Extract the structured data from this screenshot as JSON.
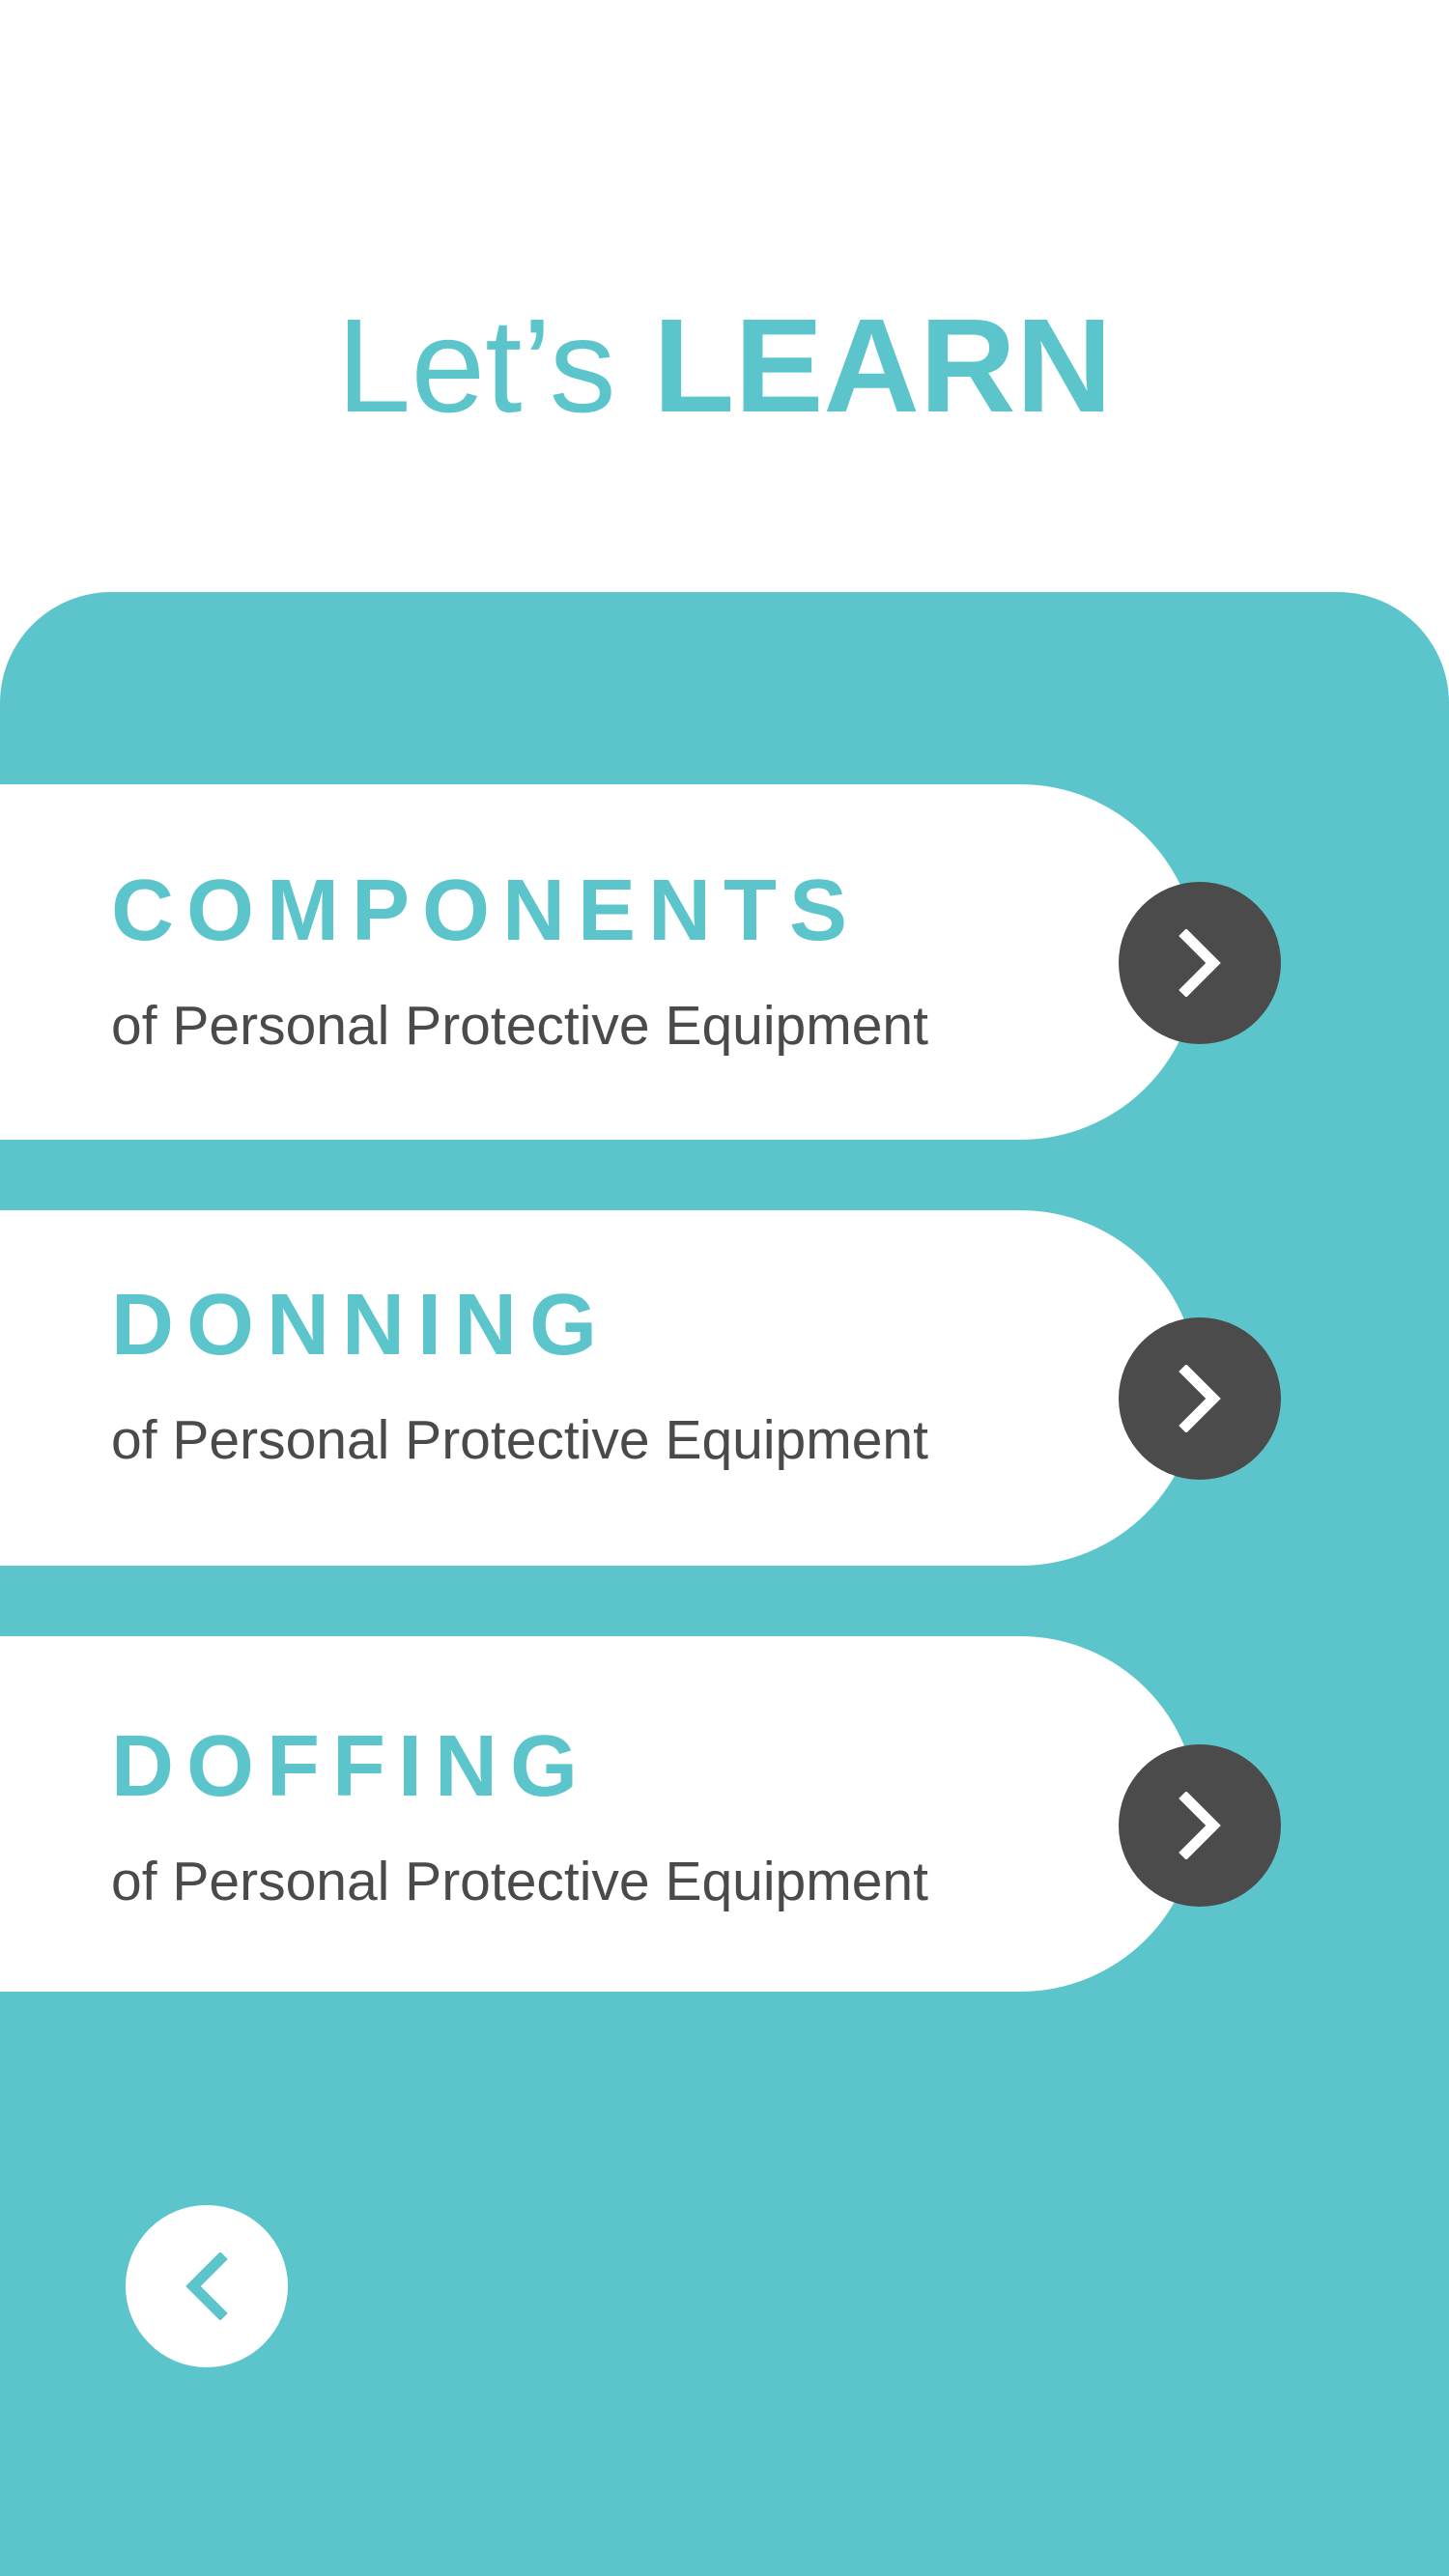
{
  "header": {
    "title_light": "Let’s",
    "title_bold": "LEARN"
  },
  "cards": [
    {
      "title": "COMPONENTS",
      "subtitle": "of Personal Protective Equipment",
      "icon": "chevron-right-icon"
    },
    {
      "title": "DONNING",
      "subtitle": "of Personal Protective Equipment",
      "icon": "chevron-right-icon"
    },
    {
      "title": "DOFFING",
      "subtitle": "of Personal Protective Equipment",
      "icon": "chevron-right-icon"
    }
  ],
  "back_button": {
    "icon": "chevron-left-icon"
  },
  "colors": {
    "accent": "#5cc5cb",
    "dark": "#4b4b4b",
    "text": "#4a4a4a",
    "background": "#ffffff"
  }
}
